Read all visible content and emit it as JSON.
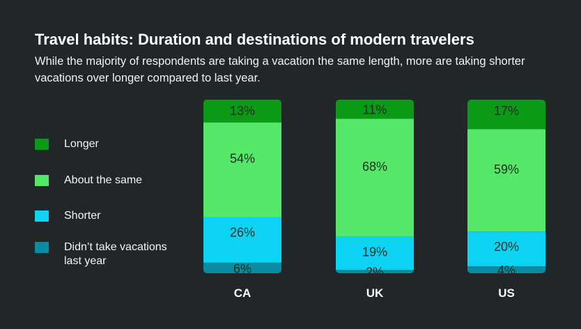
{
  "title": "Travel habits: Duration and destinations of modern travelers",
  "subtitle": "While the majority of respondents are taking a vacation the same length, more are taking shorter vacations over longer compared to last year.",
  "colors": {
    "Longer": "#0b9a16",
    "About the same": "#55e868",
    "Shorter": "#0cd3f2",
    "Didn't take vacations last year": "#0a8ba0"
  },
  "chart_data": {
    "type": "bar",
    "stacked": true,
    "title": "Travel habits: Duration and destinations of modern travelers",
    "subtitle": "While the majority of respondents are taking a vacation the same length, more are taking shorter vacations over longer compared to last year.",
    "categories": [
      "CA",
      "UK",
      "US"
    ],
    "series": [
      {
        "name": "Longer",
        "values": [
          13,
          11,
          17
        ],
        "labels": [
          "13%",
          "11%",
          "17%"
        ]
      },
      {
        "name": "About the same",
        "values": [
          54,
          68,
          59
        ],
        "labels": [
          "54%",
          "68%",
          "59%"
        ]
      },
      {
        "name": "Shorter",
        "values": [
          26,
          19,
          20
        ],
        "labels": [
          "26%",
          "19%",
          "20%"
        ]
      },
      {
        "name": "Didn’t take vacations last year",
        "values": [
          6,
          2,
          4
        ],
        "labels": [
          "6%",
          "2%",
          "4%"
        ]
      }
    ],
    "ylim": [
      0,
      100
    ],
    "legend_position": "left",
    "grid": false
  }
}
